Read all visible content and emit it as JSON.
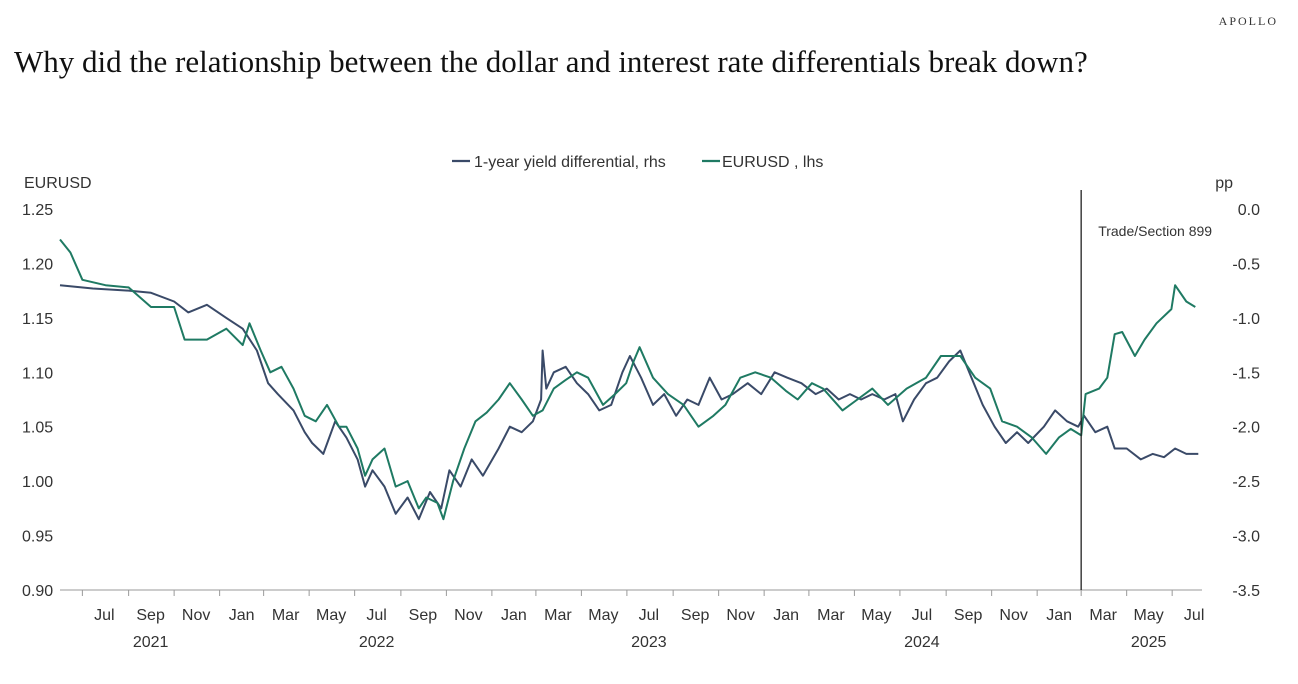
{
  "brand": "APOLLO",
  "title": "Why did the relationship between the dollar and interest rate differentials break down?",
  "chart_data": {
    "type": "line",
    "x_start": "2021-06-01",
    "x_end": "2025-08-10",
    "x_ticks": [
      {
        "label": "Jul",
        "date": "2021-07-01"
      },
      {
        "label": "Sep",
        "date": "2021-09-01"
      },
      {
        "label": "Nov",
        "date": "2021-11-01"
      },
      {
        "label": "Jan",
        "date": "2022-01-01"
      },
      {
        "label": "Mar",
        "date": "2022-03-01"
      },
      {
        "label": "May",
        "date": "2022-05-01"
      },
      {
        "label": "Jul",
        "date": "2022-07-01"
      },
      {
        "label": "Sep",
        "date": "2022-09-01"
      },
      {
        "label": "Nov",
        "date": "2022-11-01"
      },
      {
        "label": "Jan",
        "date": "2023-01-01"
      },
      {
        "label": "Mar",
        "date": "2023-03-01"
      },
      {
        "label": "May",
        "date": "2023-05-01"
      },
      {
        "label": "Jul",
        "date": "2023-07-01"
      },
      {
        "label": "Sep",
        "date": "2023-09-01"
      },
      {
        "label": "Nov",
        "date": "2023-11-01"
      },
      {
        "label": "Jan",
        "date": "2024-01-01"
      },
      {
        "label": "Mar",
        "date": "2024-03-01"
      },
      {
        "label": "May",
        "date": "2024-05-01"
      },
      {
        "label": "Jul",
        "date": "2024-07-01"
      },
      {
        "label": "Sep",
        "date": "2024-09-01"
      },
      {
        "label": "Nov",
        "date": "2024-11-01"
      },
      {
        "label": "Jan",
        "date": "2025-01-01"
      },
      {
        "label": "Mar",
        "date": "2025-03-01"
      },
      {
        "label": "May",
        "date": "2025-05-01"
      },
      {
        "label": "Jul",
        "date": "2025-07-01"
      }
    ],
    "year_labels": [
      {
        "label": "2021",
        "date": "2021-09-01"
      },
      {
        "label": "2022",
        "date": "2022-07-01"
      },
      {
        "label": "2023",
        "date": "2023-07-01"
      },
      {
        "label": "2024",
        "date": "2024-07-01"
      },
      {
        "label": "2025",
        "date": "2025-05-01"
      }
    ],
    "y_left": {
      "label": "EURUSD",
      "ylim": [
        0.9,
        1.25
      ],
      "ticks": [
        "1.25",
        "1.20",
        "1.15",
        "1.10",
        "1.05",
        "1.00",
        "0.95",
        "0.90"
      ]
    },
    "y_right": {
      "label": "pp",
      "ylim": [
        -3.5,
        0.0
      ],
      "ticks": [
        "0.0",
        "-0.5",
        "-1.0",
        "-1.5",
        "-2.0",
        "-2.5",
        "-3.0",
        "-3.5"
      ]
    },
    "vline": {
      "date": "2025-03-01",
      "label": "Trade/Section 899"
    },
    "legend": {
      "position": "top-center"
    },
    "series": [
      {
        "name": "1-year yield differential, rhs",
        "axis": "right",
        "color": "#3a4a68",
        "points": [
          [
            "2021-06-01",
            -0.7
          ],
          [
            "2021-07-15",
            -0.73
          ],
          [
            "2021-09-01",
            -0.75
          ],
          [
            "2021-10-01",
            -0.77
          ],
          [
            "2021-11-01",
            -0.85
          ],
          [
            "2021-11-20",
            -0.95
          ],
          [
            "2021-12-15",
            -0.88
          ],
          [
            "2022-01-10",
            -1.0
          ],
          [
            "2022-02-01",
            -1.1
          ],
          [
            "2022-02-20",
            -1.3
          ],
          [
            "2022-03-07",
            -1.6
          ],
          [
            "2022-03-20",
            -1.7
          ],
          [
            "2022-04-10",
            -1.85
          ],
          [
            "2022-04-25",
            -2.05
          ],
          [
            "2022-05-05",
            -2.15
          ],
          [
            "2022-05-20",
            -2.25
          ],
          [
            "2022-06-05",
            -1.95
          ],
          [
            "2022-06-20",
            -2.1
          ],
          [
            "2022-07-05",
            -2.3
          ],
          [
            "2022-07-15",
            -2.55
          ],
          [
            "2022-07-25",
            -2.4
          ],
          [
            "2022-08-10",
            -2.55
          ],
          [
            "2022-08-25",
            -2.8
          ],
          [
            "2022-09-10",
            -2.65
          ],
          [
            "2022-09-25",
            -2.85
          ],
          [
            "2022-10-10",
            -2.6
          ],
          [
            "2022-10-25",
            -2.75
          ],
          [
            "2022-11-05",
            -2.4
          ],
          [
            "2022-11-20",
            -2.55
          ],
          [
            "2022-12-05",
            -2.3
          ],
          [
            "2022-12-20",
            -2.45
          ],
          [
            "2023-01-10",
            -2.2
          ],
          [
            "2023-01-25",
            -2.0
          ],
          [
            "2023-02-10",
            -2.05
          ],
          [
            "2023-02-25",
            -1.95
          ],
          [
            "2023-03-08",
            -1.75
          ],
          [
            "2023-03-10",
            -1.3
          ],
          [
            "2023-03-15",
            -1.65
          ],
          [
            "2023-03-25",
            -1.5
          ],
          [
            "2023-04-10",
            -1.45
          ],
          [
            "2023-04-25",
            -1.6
          ],
          [
            "2023-05-10",
            -1.7
          ],
          [
            "2023-05-25",
            -1.85
          ],
          [
            "2023-06-10",
            -1.8
          ],
          [
            "2023-06-25",
            -1.5
          ],
          [
            "2023-07-05",
            -1.35
          ],
          [
            "2023-07-20",
            -1.55
          ],
          [
            "2023-08-05",
            -1.8
          ],
          [
            "2023-08-20",
            -1.7
          ],
          [
            "2023-09-05",
            -1.9
          ],
          [
            "2023-09-20",
            -1.75
          ],
          [
            "2023-10-05",
            -1.8
          ],
          [
            "2023-10-20",
            -1.55
          ],
          [
            "2023-11-05",
            -1.75
          ],
          [
            "2023-11-20",
            -1.7
          ],
          [
            "2023-12-10",
            -1.6
          ],
          [
            "2023-12-28",
            -1.7
          ],
          [
            "2024-01-15",
            -1.5
          ],
          [
            "2024-02-01",
            -1.55
          ],
          [
            "2024-02-20",
            -1.6
          ],
          [
            "2024-03-10",
            -1.7
          ],
          [
            "2024-03-25",
            -1.65
          ],
          [
            "2024-04-10",
            -1.75
          ],
          [
            "2024-04-25",
            -1.7
          ],
          [
            "2024-05-10",
            -1.75
          ],
          [
            "2024-05-25",
            -1.7
          ],
          [
            "2024-06-10",
            -1.75
          ],
          [
            "2024-06-25",
            -1.7
          ],
          [
            "2024-07-05",
            -1.95
          ],
          [
            "2024-07-20",
            -1.75
          ],
          [
            "2024-08-05",
            -1.6
          ],
          [
            "2024-08-20",
            -1.55
          ],
          [
            "2024-09-05",
            -1.4
          ],
          [
            "2024-09-20",
            -1.3
          ],
          [
            "2024-10-05",
            -1.55
          ],
          [
            "2024-10-20",
            -1.8
          ],
          [
            "2024-11-05",
            -2.0
          ],
          [
            "2024-11-20",
            -2.15
          ],
          [
            "2024-12-05",
            -2.05
          ],
          [
            "2024-12-20",
            -2.15
          ],
          [
            "2025-01-10",
            -2.0
          ],
          [
            "2025-01-25",
            -1.85
          ],
          [
            "2025-02-10",
            -1.95
          ],
          [
            "2025-02-25",
            -2.0
          ],
          [
            "2025-03-05",
            -1.9
          ],
          [
            "2025-03-20",
            -2.05
          ],
          [
            "2025-04-05",
            -2.0
          ],
          [
            "2025-04-15",
            -2.2
          ],
          [
            "2025-05-01",
            -2.2
          ],
          [
            "2025-05-20",
            -2.3
          ],
          [
            "2025-06-05",
            -2.25
          ],
          [
            "2025-06-20",
            -2.28
          ],
          [
            "2025-07-05",
            -2.2
          ],
          [
            "2025-07-20",
            -2.25
          ],
          [
            "2025-08-05",
            -2.25
          ]
        ]
      },
      {
        "name": "EURUSD , lhs",
        "axis": "left",
        "color": "#1f7a63",
        "points": [
          [
            "2021-06-01",
            1.222
          ],
          [
            "2021-06-15",
            1.21
          ],
          [
            "2021-07-01",
            1.185
          ],
          [
            "2021-08-01",
            1.18
          ],
          [
            "2021-09-01",
            1.178
          ],
          [
            "2021-10-01",
            1.16
          ],
          [
            "2021-11-01",
            1.16
          ],
          [
            "2021-11-15",
            1.13
          ],
          [
            "2021-12-15",
            1.13
          ],
          [
            "2022-01-10",
            1.14
          ],
          [
            "2022-02-01",
            1.125
          ],
          [
            "2022-02-10",
            1.145
          ],
          [
            "2022-02-25",
            1.12
          ],
          [
            "2022-03-10",
            1.1
          ],
          [
            "2022-03-25",
            1.105
          ],
          [
            "2022-04-10",
            1.085
          ],
          [
            "2022-04-25",
            1.06
          ],
          [
            "2022-05-10",
            1.055
          ],
          [
            "2022-05-25",
            1.07
          ],
          [
            "2022-06-10",
            1.05
          ],
          [
            "2022-06-20",
            1.05
          ],
          [
            "2022-07-05",
            1.03
          ],
          [
            "2022-07-15",
            1.005
          ],
          [
            "2022-07-25",
            1.02
          ],
          [
            "2022-08-10",
            1.03
          ],
          [
            "2022-08-25",
            0.995
          ],
          [
            "2022-09-10",
            1.0
          ],
          [
            "2022-09-25",
            0.975
          ],
          [
            "2022-10-05",
            0.985
          ],
          [
            "2022-10-20",
            0.98
          ],
          [
            "2022-10-28",
            0.965
          ],
          [
            "2022-11-10",
            1.0
          ],
          [
            "2022-11-25",
            1.03
          ],
          [
            "2022-12-10",
            1.055
          ],
          [
            "2022-12-25",
            1.063
          ],
          [
            "2023-01-10",
            1.075
          ],
          [
            "2023-01-25",
            1.09
          ],
          [
            "2023-02-10",
            1.075
          ],
          [
            "2023-02-25",
            1.06
          ],
          [
            "2023-03-10",
            1.065
          ],
          [
            "2023-03-25",
            1.085
          ],
          [
            "2023-04-10",
            1.093
          ],
          [
            "2023-04-25",
            1.1
          ],
          [
            "2023-05-10",
            1.095
          ],
          [
            "2023-05-30",
            1.07
          ],
          [
            "2023-06-15",
            1.08
          ],
          [
            "2023-06-30",
            1.09
          ],
          [
            "2023-07-10",
            1.11
          ],
          [
            "2023-07-18",
            1.123
          ],
          [
            "2023-08-05",
            1.095
          ],
          [
            "2023-08-25",
            1.08
          ],
          [
            "2023-09-15",
            1.07
          ],
          [
            "2023-10-05",
            1.05
          ],
          [
            "2023-10-25",
            1.06
          ],
          [
            "2023-11-10",
            1.07
          ],
          [
            "2023-11-30",
            1.095
          ],
          [
            "2023-12-20",
            1.1
          ],
          [
            "2024-01-10",
            1.095
          ],
          [
            "2024-01-30",
            1.083
          ],
          [
            "2024-02-15",
            1.075
          ],
          [
            "2024-03-05",
            1.09
          ],
          [
            "2024-03-20",
            1.085
          ],
          [
            "2024-04-15",
            1.065
          ],
          [
            "2024-05-05",
            1.075
          ],
          [
            "2024-05-25",
            1.085
          ],
          [
            "2024-06-15",
            1.07
          ],
          [
            "2024-07-10",
            1.085
          ],
          [
            "2024-08-05",
            1.095
          ],
          [
            "2024-08-25",
            1.115
          ],
          [
            "2024-09-20",
            1.115
          ],
          [
            "2024-10-10",
            1.095
          ],
          [
            "2024-10-30",
            1.085
          ],
          [
            "2024-11-15",
            1.055
          ],
          [
            "2024-12-05",
            1.05
          ],
          [
            "2024-12-25",
            1.04
          ],
          [
            "2025-01-13",
            1.025
          ],
          [
            "2025-01-30",
            1.04
          ],
          [
            "2025-02-15",
            1.048
          ],
          [
            "2025-03-01",
            1.042
          ],
          [
            "2025-03-07",
            1.08
          ],
          [
            "2025-03-25",
            1.085
          ],
          [
            "2025-04-05",
            1.095
          ],
          [
            "2025-04-15",
            1.135
          ],
          [
            "2025-04-25",
            1.137
          ],
          [
            "2025-05-12",
            1.115
          ],
          [
            "2025-05-25",
            1.13
          ],
          [
            "2025-06-10",
            1.145
          ],
          [
            "2025-06-30",
            1.158
          ],
          [
            "2025-07-05",
            1.18
          ],
          [
            "2025-07-20",
            1.165
          ],
          [
            "2025-08-01",
            1.16
          ]
        ]
      }
    ]
  }
}
